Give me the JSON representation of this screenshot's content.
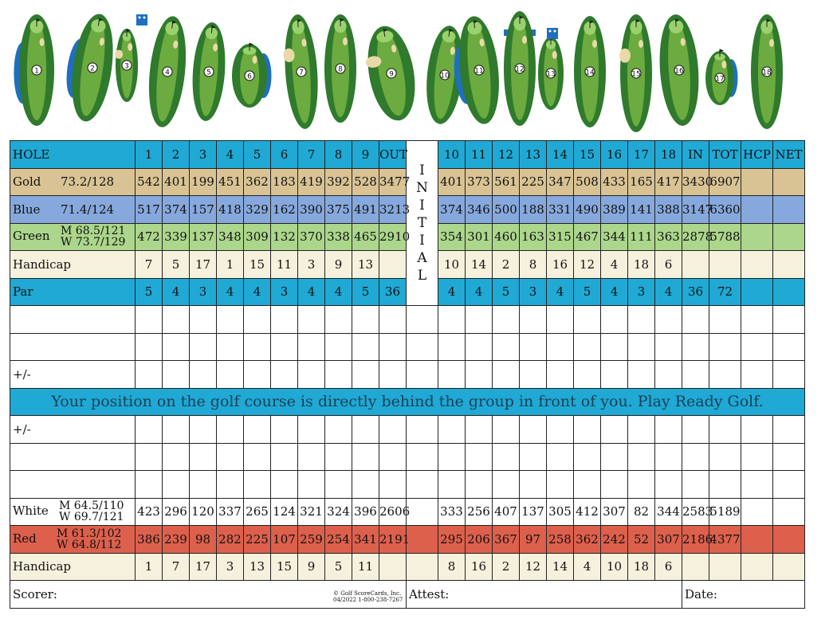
{
  "hole_numbers": [
    "1",
    "2",
    "3",
    "4",
    "5",
    "6",
    "7",
    "8",
    "9",
    "10",
    "11",
    "12",
    "13",
    "14",
    "15",
    "16",
    "17",
    "18"
  ],
  "header": {
    "label": "HOLE",
    "front": [
      "1",
      "2",
      "3",
      "4",
      "5",
      "6",
      "7",
      "8",
      "9"
    ],
    "out": "OUT",
    "back": [
      "10",
      "11",
      "12",
      "13",
      "14",
      "15",
      "16",
      "17",
      "18"
    ],
    "in": "IN",
    "tot": "TOT",
    "hcp": "HCP",
    "net": "NET"
  },
  "initial": "I N I T I A L",
  "gold": {
    "label": "Gold",
    "rating": "73.2/128",
    "front": [
      "542",
      "401",
      "199",
      "451",
      "362",
      "183",
      "419",
      "392",
      "528"
    ],
    "out": "3477",
    "back": [
      "401",
      "373",
      "561",
      "225",
      "347",
      "508",
      "433",
      "165",
      "417"
    ],
    "in": "3430",
    "tot": "6907"
  },
  "blue": {
    "label": "Blue",
    "rating": "71.4/124",
    "front": [
      "517",
      "374",
      "157",
      "418",
      "329",
      "162",
      "390",
      "375",
      "491"
    ],
    "out": "3213",
    "back": [
      "374",
      "346",
      "500",
      "188",
      "331",
      "490",
      "389",
      "141",
      "388"
    ],
    "in": "3147",
    "tot": "6360"
  },
  "green": {
    "label": "Green",
    "rating_m": "M 68.5/121",
    "rating_w": "W 73.7/129",
    "front": [
      "472",
      "339",
      "137",
      "348",
      "309",
      "132",
      "370",
      "338",
      "465"
    ],
    "out": "2910",
    "back": [
      "354",
      "301",
      "460",
      "163",
      "315",
      "467",
      "344",
      "111",
      "363"
    ],
    "in": "2878",
    "tot": "5788"
  },
  "handicap1": {
    "label": "Handicap",
    "front": [
      "7",
      "5",
      "17",
      "1",
      "15",
      "11",
      "3",
      "9",
      "13"
    ],
    "back": [
      "10",
      "14",
      "2",
      "8",
      "16",
      "12",
      "4",
      "18",
      "6"
    ]
  },
  "par": {
    "label": "Par",
    "front": [
      "5",
      "4",
      "3",
      "4",
      "4",
      "3",
      "4",
      "4",
      "5"
    ],
    "out": "36",
    "back": [
      "4",
      "4",
      "5",
      "3",
      "4",
      "5",
      "4",
      "3",
      "4"
    ],
    "in": "36",
    "tot": "72"
  },
  "plusminus": "+/-",
  "message": "Your position on the golf course is directly behind the group in front of you. Play Ready Golf.",
  "white": {
    "label": "White",
    "rating_m": "M 64.5/110",
    "rating_w": "W 69.7/121",
    "front": [
      "423",
      "296",
      "120",
      "337",
      "265",
      "124",
      "321",
      "324",
      "396"
    ],
    "out": "2606",
    "back": [
      "333",
      "256",
      "407",
      "137",
      "305",
      "412",
      "307",
      "82",
      "344"
    ],
    "in": "2583",
    "tot": "5189"
  },
  "red": {
    "label": "Red",
    "rating_m": "M 61.3/102",
    "rating_w": "W 64.8/112",
    "front": [
      "386",
      "239",
      "98",
      "282",
      "225",
      "107",
      "259",
      "254",
      "341"
    ],
    "out": "2191",
    "back": [
      "295",
      "206",
      "367",
      "97",
      "258",
      "362",
      "242",
      "52",
      "307"
    ],
    "in": "2186",
    "tot": "4377"
  },
  "handicap2": {
    "label": "Handicap",
    "front": [
      "1",
      "7",
      "17",
      "3",
      "13",
      "15",
      "9",
      "5",
      "11"
    ],
    "back": [
      "8",
      "16",
      "2",
      "12",
      "14",
      "4",
      "10",
      "18",
      "6"
    ]
  },
  "footer": {
    "scorer": "Scorer:",
    "attest": "Attest:",
    "date": "Date:",
    "copyright_line1": "© Golf ScoreCards, Inc.",
    "copyright_line2": "04/2022  1-800-238-7267"
  },
  "colors": {
    "cyan": "#1fa9d4",
    "gold": "#d9c394",
    "blue": "#86a8dc",
    "green": "#acd68b",
    "cream": "#f6f1dd",
    "red": "#dd604c",
    "fairway": "#6cab3f",
    "rough": "#2f7a2c",
    "water": "#1f6fc0",
    "sand": "#ead9a8"
  }
}
